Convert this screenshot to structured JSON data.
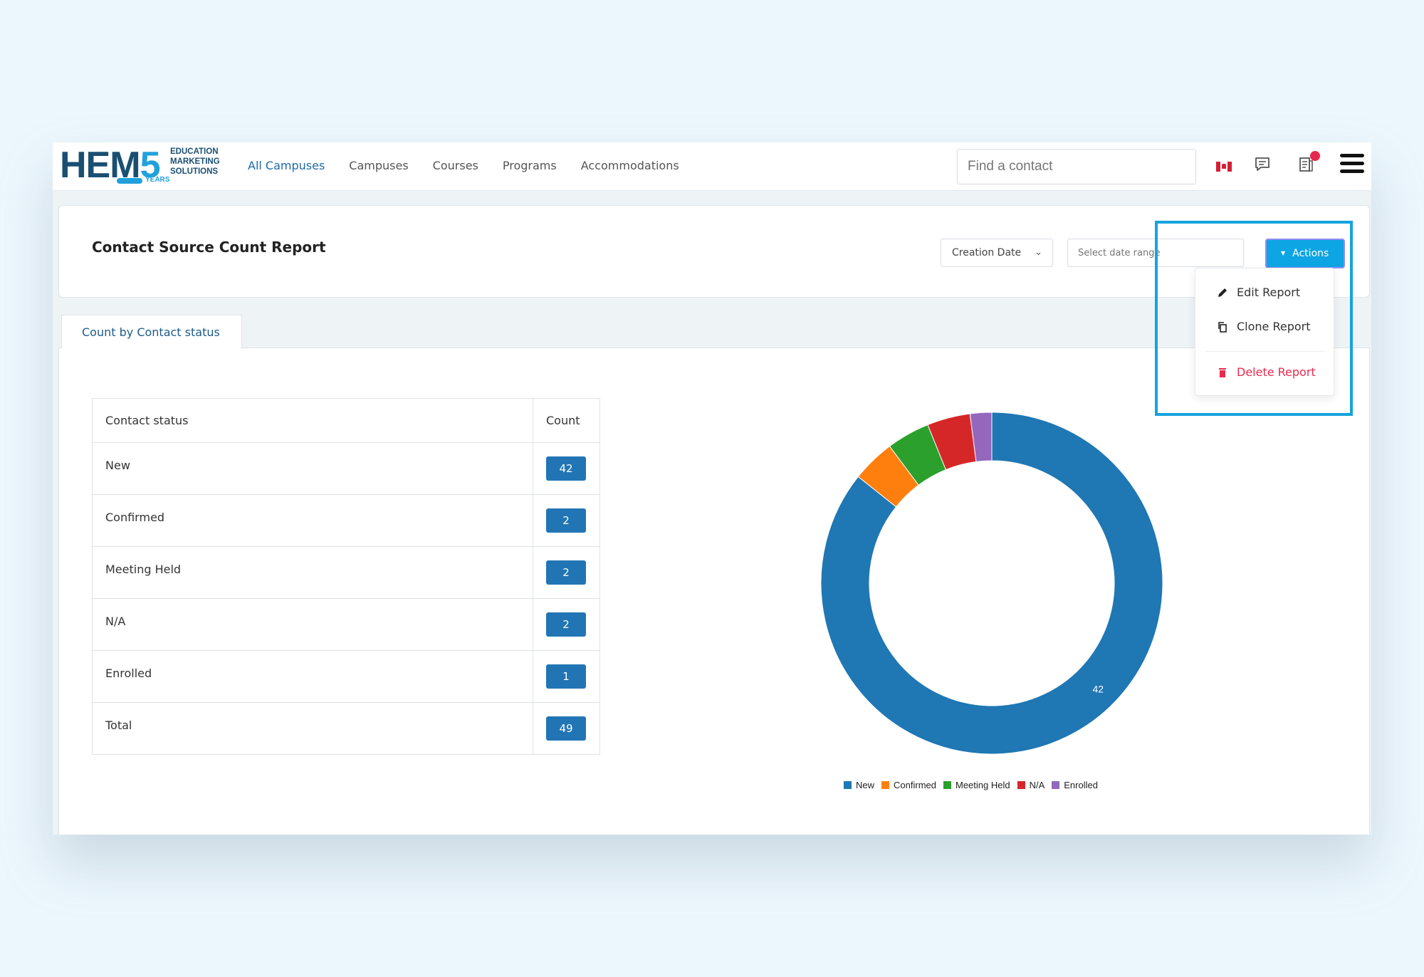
{
  "logo": {
    "main": "HEM",
    "five": "5",
    "side": [
      "EDUCATION",
      "MARKETING",
      "SOLUTIONS"
    ],
    "years": "YEARS"
  },
  "nav": [
    {
      "label": "All Campuses",
      "active": true
    },
    {
      "label": "Campuses"
    },
    {
      "label": "Courses"
    },
    {
      "label": "Programs"
    },
    {
      "label": "Accommodations"
    }
  ],
  "search": {
    "placeholder": "Find a contact"
  },
  "header": {
    "title": "Contact Source Count Report",
    "date_field": "Creation Date",
    "date_range_placeholder": "Select date range",
    "actions_label": "Actions"
  },
  "actions_menu": [
    {
      "label": "Edit Report",
      "icon": "pencil-icon"
    },
    {
      "label": "Clone Report",
      "icon": "copy-icon"
    },
    {
      "label": "Delete Report",
      "icon": "trash-icon",
      "color": "#e8294e"
    }
  ],
  "tab": {
    "label": "Count by Contact status"
  },
  "table": {
    "headers": [
      "Contact status",
      "Count"
    ],
    "rows": [
      {
        "status": "New",
        "count": "42"
      },
      {
        "status": "Confirmed",
        "count": "2"
      },
      {
        "status": "Meeting Held",
        "count": "2"
      },
      {
        "status": "N/A",
        "count": "2"
      },
      {
        "status": "Enrolled",
        "count": "1"
      },
      {
        "status": "Total",
        "count": "49"
      }
    ]
  },
  "chart_data": {
    "type": "pie",
    "categories": [
      "New",
      "Confirmed",
      "Meeting Held",
      "N/A",
      "Enrolled"
    ],
    "values": [
      42,
      2,
      2,
      2,
      1
    ],
    "colors": [
      "#1f77b4",
      "#ff7f0e",
      "#2ca02c",
      "#d62728",
      "#9467bd"
    ],
    "data_labels": [
      "42",
      "",
      "",
      "",
      ""
    ],
    "donut": true,
    "legend": "bottom"
  },
  "colors": {
    "accent": "#0ea5e4",
    "badge": "#2275b4",
    "danger": "#e8294e",
    "brand": "#1a4f72"
  }
}
